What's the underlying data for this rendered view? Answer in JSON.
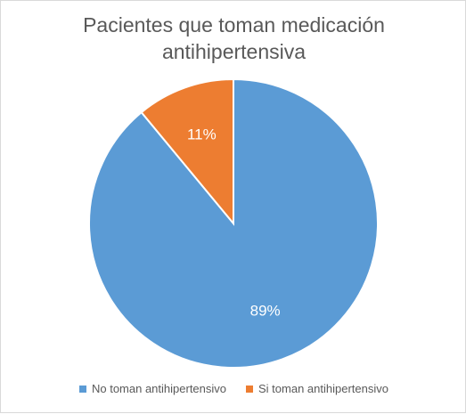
{
  "chart_data": {
    "type": "pie",
    "title": "Pacientes que toman medicación antihipertensiva",
    "title_lines": [
      "Pacientes que toman medicación",
      "antihipertensiva"
    ],
    "categories": [
      "No toman antihipertensivo",
      "Si toman antihipertensivo"
    ],
    "values": [
      89,
      11
    ],
    "data_labels": [
      "89%",
      "11%"
    ],
    "colors": [
      "#5b9bd5",
      "#ed7d31"
    ],
    "legend_position": "bottom"
  }
}
